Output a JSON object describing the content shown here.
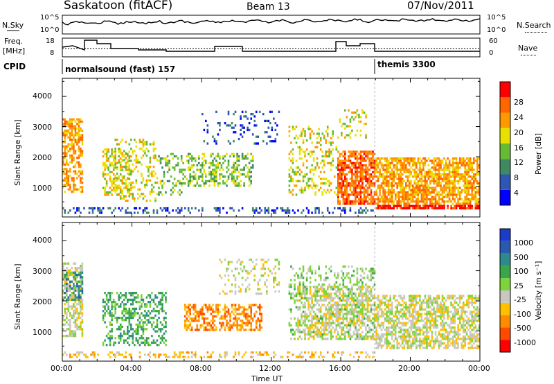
{
  "header": {
    "station": "Saskatoon (fitACF)",
    "beam": "Beam 13",
    "date": "07/Nov/2011"
  },
  "left_labels": {
    "nsky": "N.Sky",
    "freq": "Freq.",
    "freq_unit": "[MHz]",
    "cpid": "CPID"
  },
  "right_labels": {
    "nsearch": "N.Search",
    "nave": "Nave"
  },
  "noise_axis": {
    "top": "10^5",
    "bottom": "10^0"
  },
  "freq_axis": {
    "ticks": [
      "18",
      "8"
    ]
  },
  "nave_axis": {
    "ticks": [
      "60",
      "0"
    ]
  },
  "cpid": {
    "first": "normalsound (fast) 157",
    "second": "themis 3300"
  },
  "colors": {
    "power": [
      "#0000ff",
      "#2e56b5",
      "#3f8a63",
      "#66bb33",
      "#e8e000",
      "#ff9900",
      "#ff6600",
      "#ff0000"
    ],
    "velocity": [
      "#ff0000",
      "#ff4a00",
      "#ff8c00",
      "#ffc000",
      "#c8c8c0",
      "#7fd33a",
      "#3aa64a",
      "#2e8b8b",
      "#2a5ab0",
      "#1a3cc8"
    ]
  },
  "chart_data": [
    {
      "type": "heatmap",
      "name": "power-panel",
      "ylabel": "Slant Range [km]",
      "y_ticks": [
        1000,
        2000,
        3000,
        4000
      ],
      "ylim": [
        0,
        4600
      ],
      "xlim_hours": [
        0,
        24
      ],
      "colorbar": {
        "label": "Power [dB]",
        "ticks": [
          "4",
          "8",
          "12",
          "16",
          "20",
          "24",
          "28"
        ],
        "range": [
          0,
          32
        ]
      },
      "regions": [
        {
          "h0": 0.0,
          "h1": 1.2,
          "r0": 800,
          "r1": 3300,
          "level": 5,
          "density": 0.55
        },
        {
          "h0": 2.3,
          "h1": 4.0,
          "r0": 700,
          "r1": 2300,
          "level": 4,
          "density": 0.45
        },
        {
          "h0": 3.0,
          "h1": 5.5,
          "r0": 500,
          "r1": 2600,
          "level": 4,
          "density": 0.3
        },
        {
          "h0": 5.5,
          "h1": 7.0,
          "r0": 700,
          "r1": 2100,
          "level": 3,
          "density": 0.3
        },
        {
          "h0": 7.0,
          "h1": 11.0,
          "r0": 1000,
          "r1": 2100,
          "level": 3,
          "density": 0.45
        },
        {
          "h0": 8.0,
          "h1": 12.5,
          "r0": 2400,
          "r1": 3500,
          "level": 1,
          "density": 0.15
        },
        {
          "h0": 13.0,
          "h1": 15.8,
          "r0": 700,
          "r1": 3000,
          "level": 4,
          "density": 0.3
        },
        {
          "h0": 15.8,
          "h1": 18.0,
          "r0": 400,
          "r1": 2200,
          "level": 6,
          "density": 0.75
        },
        {
          "h0": 15.8,
          "h1": 17.5,
          "r0": 2600,
          "r1": 3600,
          "level": 4,
          "density": 0.25
        },
        {
          "h0": 18.0,
          "h1": 24.0,
          "r0": 400,
          "r1": 2000,
          "level": 5,
          "density": 0.75
        },
        {
          "h0": 18.0,
          "h1": 24.0,
          "r0": 250,
          "r1": 400,
          "level": 7,
          "density": 0.8
        },
        {
          "h0": 0.0,
          "h1": 18.0,
          "r0": 100,
          "r1": 300,
          "level": 1,
          "density": 0.35
        }
      ]
    },
    {
      "type": "heatmap",
      "name": "velocity-panel",
      "xlabel": "Time UT",
      "ylabel": "Slant Range [km]",
      "y_ticks": [
        1000,
        2000,
        3000,
        4000
      ],
      "ylim": [
        0,
        4600
      ],
      "xlim_hours": [
        0,
        24
      ],
      "x_ticks": [
        "00:00",
        "04:00",
        "08:00",
        "12:00",
        "16:00",
        "20:00",
        "00:00"
      ],
      "colorbar": {
        "label": "Velocity [m s⁻¹]",
        "ticks": [
          "1000",
          "500",
          "100",
          "25",
          "-25",
          "-100",
          "-500",
          "-1000"
        ],
        "range": [
          -1200,
          1200
        ]
      },
      "regions": [
        {
          "h0": 0.0,
          "h1": 1.2,
          "r0": 800,
          "r1": 3300,
          "level": 4,
          "density": 0.55
        },
        {
          "h0": 0.0,
          "h1": 1.2,
          "r0": 2000,
          "r1": 3000,
          "level": 7,
          "density": 0.35
        },
        {
          "h0": 2.3,
          "h1": 6.0,
          "r0": 500,
          "r1": 2300,
          "level": 6,
          "density": 0.4
        },
        {
          "h0": 7.0,
          "h1": 11.5,
          "r0": 1000,
          "r1": 1900,
          "level": 2,
          "density": 0.55
        },
        {
          "h0": 9.0,
          "h1": 12.5,
          "r0": 2200,
          "r1": 3400,
          "level": 4,
          "density": 0.2
        },
        {
          "h0": 13.0,
          "h1": 18.0,
          "r0": 700,
          "r1": 3200,
          "level": 5,
          "density": 0.3
        },
        {
          "h0": 13.5,
          "h1": 18.0,
          "r0": 700,
          "r1": 2500,
          "level": 4,
          "density": 0.5
        },
        {
          "h0": 18.0,
          "h1": 24.0,
          "r0": 400,
          "r1": 2200,
          "level": 4,
          "density": 0.65
        },
        {
          "h0": 0.0,
          "h1": 18.0,
          "r0": 100,
          "r1": 300,
          "level": 3,
          "density": 0.3
        }
      ]
    }
  ]
}
